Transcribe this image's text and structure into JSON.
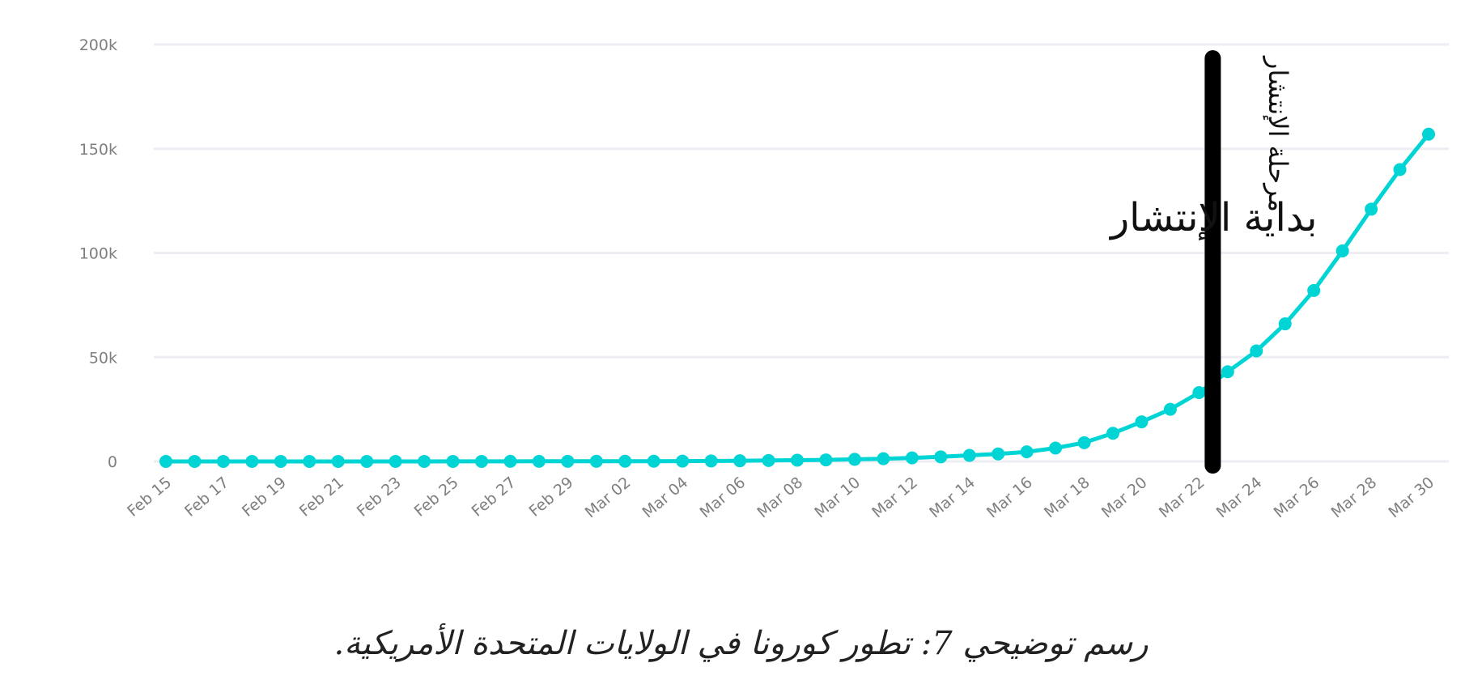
{
  "caption": "رسم توضيحي 7: تطور كورونا في الولايات المتحدة الأمريكية.",
  "colors": {
    "line": "#00d4d4",
    "grid": "#eceef3",
    "tick_text": "#7f7f7f",
    "marker_line": "#000000"
  },
  "chart_data": {
    "type": "line",
    "title": "",
    "xlabel": "",
    "ylabel": "",
    "ylim": [
      0,
      200000
    ],
    "yticks": [
      {
        "value": 0,
        "label": "0"
      },
      {
        "value": 50000,
        "label": "50k"
      },
      {
        "value": 100000,
        "label": "100k"
      },
      {
        "value": 150000,
        "label": "150k"
      },
      {
        "value": 200000,
        "label": "200k"
      }
    ],
    "grid": true,
    "x": [
      "Feb 15",
      "Feb 16",
      "Feb 17",
      "Feb 18",
      "Feb 19",
      "Feb 20",
      "Feb 21",
      "Feb 22",
      "Feb 23",
      "Feb 24",
      "Feb 25",
      "Feb 26",
      "Feb 27",
      "Feb 28",
      "Feb 29",
      "Mar 01",
      "Mar 02",
      "Mar 03",
      "Mar 04",
      "Mar 05",
      "Mar 06",
      "Mar 07",
      "Mar 08",
      "Mar 09",
      "Mar 10",
      "Mar 11",
      "Mar 12",
      "Mar 13",
      "Mar 14",
      "Mar 15",
      "Mar 16",
      "Mar 17",
      "Mar 18",
      "Mar 19",
      "Mar 20",
      "Mar 21",
      "Mar 22",
      "Mar 23",
      "Mar 24",
      "Mar 25",
      "Mar 26",
      "Mar 27",
      "Mar 28",
      "Mar 29",
      "Mar 30"
    ],
    "xtick_labels": [
      "Feb 15",
      "Feb 17",
      "Feb 19",
      "Feb 21",
      "Feb 23",
      "Feb 25",
      "Feb 27",
      "Feb 29",
      "Mar 02",
      "Mar 04",
      "Mar 06",
      "Mar 08",
      "Mar 10",
      "Mar 12",
      "Mar 14",
      "Mar 16",
      "Mar 18",
      "Mar 20",
      "Mar 22",
      "Mar 24",
      "Mar 26",
      "Mar 28",
      "Mar 30"
    ],
    "series": [
      {
        "values": [
          15,
          15,
          15,
          15,
          15,
          15,
          15,
          15,
          15,
          15,
          20,
          20,
          40,
          60,
          70,
          80,
          100,
          120,
          160,
          230,
          320,
          450,
          600,
          750,
          1000,
          1300,
          1700,
          2200,
          2900,
          3600,
          4600,
          6400,
          9000,
          13500,
          19000,
          25000,
          33000,
          43000,
          53000,
          66000,
          82000,
          101000,
          121000,
          140000,
          157000
        ]
      }
    ],
    "annotations": {
      "vertical_marker_at": "Mar 22",
      "start_label": "بداية الإنتشار",
      "phase_label": "مرحلة الإنتشار"
    }
  }
}
